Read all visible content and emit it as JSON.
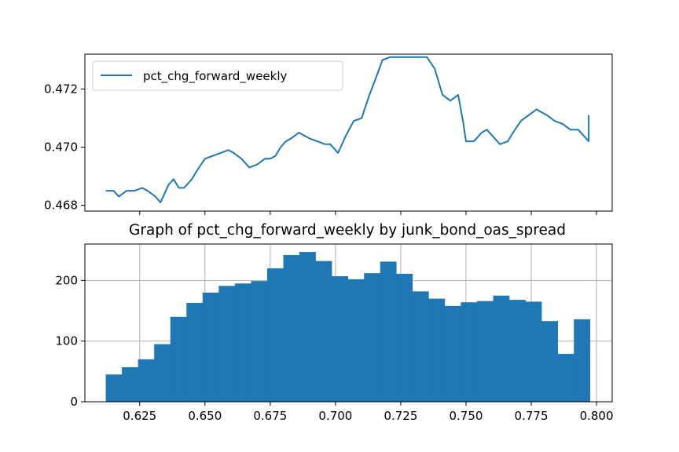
{
  "chart_data": [
    {
      "type": "line",
      "title": "",
      "xlabel": "",
      "ylabel": "",
      "legend": {
        "entries": [
          "pct_chg_forward_weekly"
        ],
        "placement": "upper-left"
      },
      "grid": false,
      "x_tick_labels": "none",
      "xlim": [
        0.604,
        0.806
      ],
      "ylim": [
        0.4678,
        0.4732
      ],
      "yticks": [
        0.468,
        0.47,
        0.472
      ],
      "ytick_labels": [
        "0.468",
        "0.470",
        "0.472"
      ],
      "color": "#1f77b4",
      "series": [
        {
          "name": "pct_chg_forward_weekly",
          "x": [
            0.612,
            0.615,
            0.617,
            0.62,
            0.623,
            0.626,
            0.628,
            0.631,
            0.633,
            0.636,
            0.638,
            0.64,
            0.642,
            0.644,
            0.645,
            0.647,
            0.65,
            0.653,
            0.656,
            0.659,
            0.661,
            0.664,
            0.667,
            0.67,
            0.673,
            0.675,
            0.677,
            0.679,
            0.681,
            0.683,
            0.686,
            0.69,
            0.693,
            0.696,
            0.698,
            0.701,
            0.704,
            0.707,
            0.71,
            0.713,
            0.716,
            0.718,
            0.721,
            0.723,
            0.725,
            0.728,
            0.731,
            0.733,
            0.735,
            0.738,
            0.741,
            0.744,
            0.747,
            0.749,
            0.75,
            0.752,
            0.753,
            0.754,
            0.756,
            0.758,
            0.76,
            0.763,
            0.766,
            0.768,
            0.771,
            0.774,
            0.777,
            0.779,
            0.781,
            0.784,
            0.787,
            0.79,
            0.793,
            0.795,
            0.797,
            0.797
          ],
          "values": [
            0.4685,
            0.4685,
            0.4683,
            0.4685,
            0.4685,
            0.4686,
            0.4685,
            0.4683,
            0.4681,
            0.4687,
            0.4689,
            0.4686,
            0.4686,
            0.4688,
            0.4689,
            0.4692,
            0.4696,
            0.4697,
            0.4698,
            0.4699,
            0.4698,
            0.4696,
            0.4693,
            0.4694,
            0.4696,
            0.4696,
            0.4697,
            0.47,
            0.4702,
            0.4703,
            0.4705,
            0.4703,
            0.4702,
            0.4701,
            0.4701,
            0.4698,
            0.4704,
            0.4709,
            0.471,
            0.4718,
            0.4725,
            0.473,
            0.4731,
            0.4731,
            0.4731,
            0.4731,
            0.4731,
            0.4731,
            0.4731,
            0.4727,
            0.4718,
            0.4716,
            0.4718,
            0.4708,
            0.4702,
            0.4702,
            0.4702,
            0.4703,
            0.4705,
            0.4706,
            0.4704,
            0.4701,
            0.4702,
            0.4705,
            0.4709,
            0.4711,
            0.4713,
            0.4712,
            0.4711,
            0.4709,
            0.4708,
            0.4706,
            0.4706,
            0.4704,
            0.4702,
            0.4711
          ]
        }
      ]
    },
    {
      "type": "bar",
      "title": "Graph of pct_chg_forward_weekly by junk_bond_oas_spread",
      "xlabel": "",
      "ylabel": "",
      "grid": true,
      "xlim": [
        0.604,
        0.806
      ],
      "ylim": [
        0,
        260
      ],
      "xticks": [
        0.625,
        0.65,
        0.675,
        0.7,
        0.725,
        0.75,
        0.775,
        0.8
      ],
      "xtick_labels": [
        "0.625",
        "0.650",
        "0.675",
        "0.700",
        "0.725",
        "0.750",
        "0.775",
        "0.800"
      ],
      "yticks": [
        0,
        100,
        200
      ],
      "ytick_labels": [
        "0",
        "100",
        "200"
      ],
      "color": "#1f77b4",
      "bin_start": 0.612,
      "bin_end": 0.7975,
      "values": [
        45,
        57,
        70,
        95,
        140,
        163,
        180,
        191,
        195,
        199,
        220,
        242,
        247,
        232,
        207,
        202,
        212,
        231,
        211,
        182,
        170,
        158,
        164,
        166,
        175,
        168,
        165,
        133,
        79,
        136
      ]
    }
  ]
}
